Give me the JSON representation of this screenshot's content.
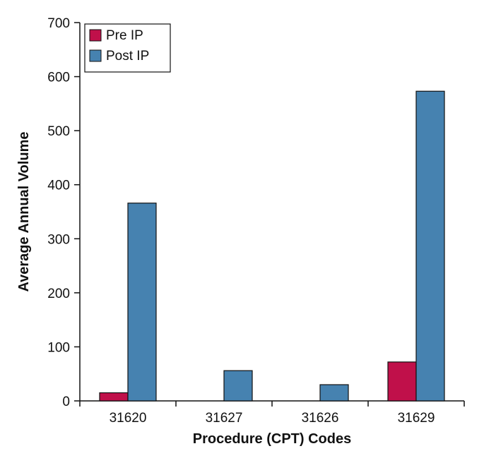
{
  "chart_data": {
    "type": "bar",
    "categories": [
      "31620",
      "31627",
      "31626",
      "31629"
    ],
    "series": [
      {
        "name": "Pre IP",
        "values": [
          15,
          0,
          0,
          72
        ],
        "color": "#c0104a"
      },
      {
        "name": "Post IP",
        "values": [
          366,
          56,
          30,
          573
        ],
        "color": "#4682b0"
      }
    ],
    "title": "",
    "xlabel": "Procedure (CPT) Codes",
    "ylabel": "Average Annual Volume",
    "ylim": [
      0,
      700
    ],
    "yticks": [
      0,
      100,
      200,
      300,
      400,
      500,
      600,
      700
    ],
    "grid": false,
    "legend_position": "top-left"
  }
}
